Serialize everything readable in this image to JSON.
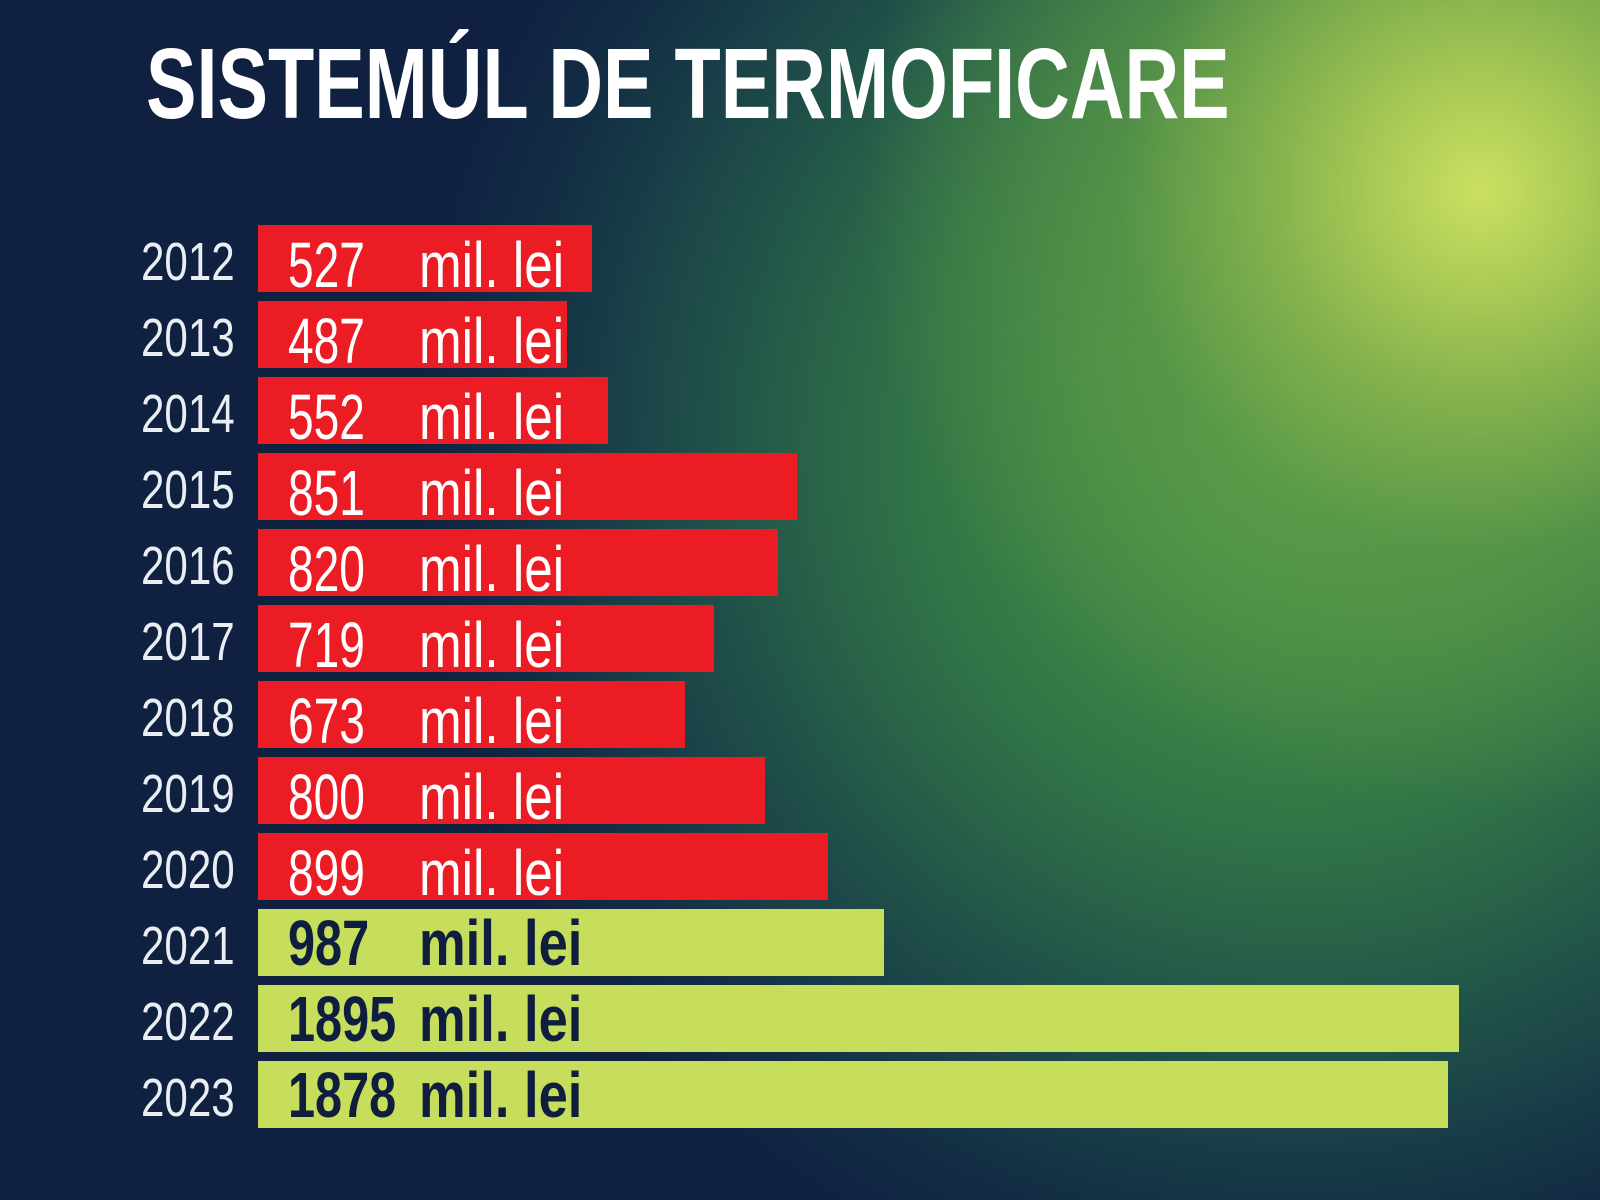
{
  "chart_data": {
    "type": "bar",
    "orientation": "horizontal",
    "title": "SISTEMÚL DE TERMOFICARE",
    "categories": [
      "2012",
      "2013",
      "2014",
      "2015",
      "2016",
      "2017",
      "2018",
      "2019",
      "2020",
      "2021",
      "2022",
      "2023"
    ],
    "values": [
      527,
      487,
      552,
      851,
      820,
      719,
      673,
      800,
      899,
      987,
      1895,
      1878
    ],
    "value_unit": "mil. lei",
    "highlighted": [
      false,
      false,
      false,
      false,
      false,
      false,
      false,
      false,
      false,
      true,
      true,
      true
    ],
    "grid": false
  },
  "colors": {
    "background": "#0F2041",
    "glow": "#CBE062",
    "green": "#3F8745",
    "bar": "#EC1C24",
    "highlight_bar": "#C7DD5C",
    "label_text": "#FFFFFF",
    "highlight_label_text": "#0F1E3E",
    "year_text": "#EAEEF2"
  }
}
